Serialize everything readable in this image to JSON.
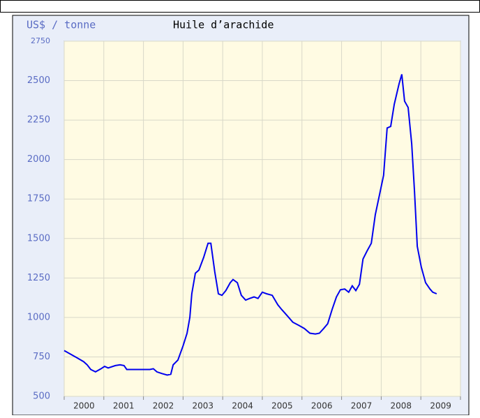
{
  "chart_data": {
    "type": "line",
    "title": "Huile d’arachide",
    "y_label": "US$ / tonne",
    "x": [
      2000.0,
      2000.14,
      2000.32,
      2000.49,
      2000.58,
      2000.67,
      2000.79,
      2000.93,
      2001.02,
      2001.11,
      2001.29,
      2001.41,
      2001.51,
      2001.58,
      2001.9,
      2002.16,
      2002.25,
      2002.34,
      2002.46,
      2002.6,
      2002.69,
      2002.75,
      2002.87,
      2003.0,
      2003.1,
      2003.17,
      2003.22,
      2003.31,
      2003.4,
      2003.52,
      2003.63,
      2003.7,
      2003.8,
      2003.89,
      2003.98,
      2004.08,
      2004.19,
      2004.26,
      2004.37,
      2004.47,
      2004.58,
      2004.68,
      2004.79,
      2004.89,
      2005.0,
      2005.11,
      2005.25,
      2005.39,
      2005.49,
      2005.63,
      2005.77,
      2005.92,
      2006.06,
      2006.2,
      2006.34,
      2006.44,
      2006.55,
      2006.65,
      2006.76,
      2006.87,
      2006.97,
      2007.08,
      2007.18,
      2007.27,
      2007.36,
      2007.45,
      2007.54,
      2007.64,
      2007.75,
      2007.85,
      2007.96,
      2008.06,
      2008.15,
      2008.24,
      2008.33,
      2008.45,
      2008.52,
      2008.59,
      2008.68,
      2008.77,
      2008.84,
      2008.91,
      2009.01,
      2009.12,
      2009.23,
      2009.3,
      2009.4
    ],
    "series": [
      {
        "name": "Huile d’arachide",
        "color": "#0000ee",
        "values": [
          790,
          770,
          745,
          720,
          700,
          670,
          655,
          675,
          690,
          680,
          695,
          700,
          695,
          670,
          670,
          670,
          675,
          655,
          645,
          635,
          640,
          700,
          730,
          820,
          900,
          1000,
          1150,
          1280,
          1300,
          1380,
          1470,
          1470,
          1290,
          1150,
          1140,
          1170,
          1220,
          1240,
          1220,
          1140,
          1110,
          1120,
          1130,
          1120,
          1160,
          1150,
          1140,
          1080,
          1050,
          1010,
          970,
          950,
          930,
          900,
          895,
          900,
          930,
          960,
          1050,
          1130,
          1175,
          1180,
          1160,
          1200,
          1170,
          1210,
          1370,
          1420,
          1470,
          1650,
          1780,
          1900,
          2200,
          2210,
          2350,
          2480,
          2540,
          2370,
          2330,
          2100,
          1800,
          1450,
          1320,
          1220,
          1180,
          1160,
          1150
        ]
      }
    ],
    "xlim": [
      2000,
      2010
    ],
    "xgrid": [
      2000,
      2001,
      2002,
      2003,
      2004,
      2005,
      2006,
      2007,
      2008,
      2009,
      2010
    ],
    "xticks": [
      {
        "value": 2000.5,
        "label": "2000"
      },
      {
        "value": 2001.5,
        "label": "2001"
      },
      {
        "value": 2002.5,
        "label": "2002"
      },
      {
        "value": 2003.5,
        "label": "2003"
      },
      {
        "value": 2004.5,
        "label": "2004"
      },
      {
        "value": 2005.5,
        "label": "2005"
      },
      {
        "value": 2006.5,
        "label": "2006"
      },
      {
        "value": 2007.5,
        "label": "2007"
      },
      {
        "value": 2008.5,
        "label": "2008"
      },
      {
        "value": 2009.5,
        "label": "2009"
      }
    ],
    "ylim": [
      500,
      2750
    ],
    "yticks": [
      500,
      750,
      1000,
      1250,
      1500,
      1750,
      2000,
      2250,
      2500,
      2750
    ],
    "grid": true
  }
}
